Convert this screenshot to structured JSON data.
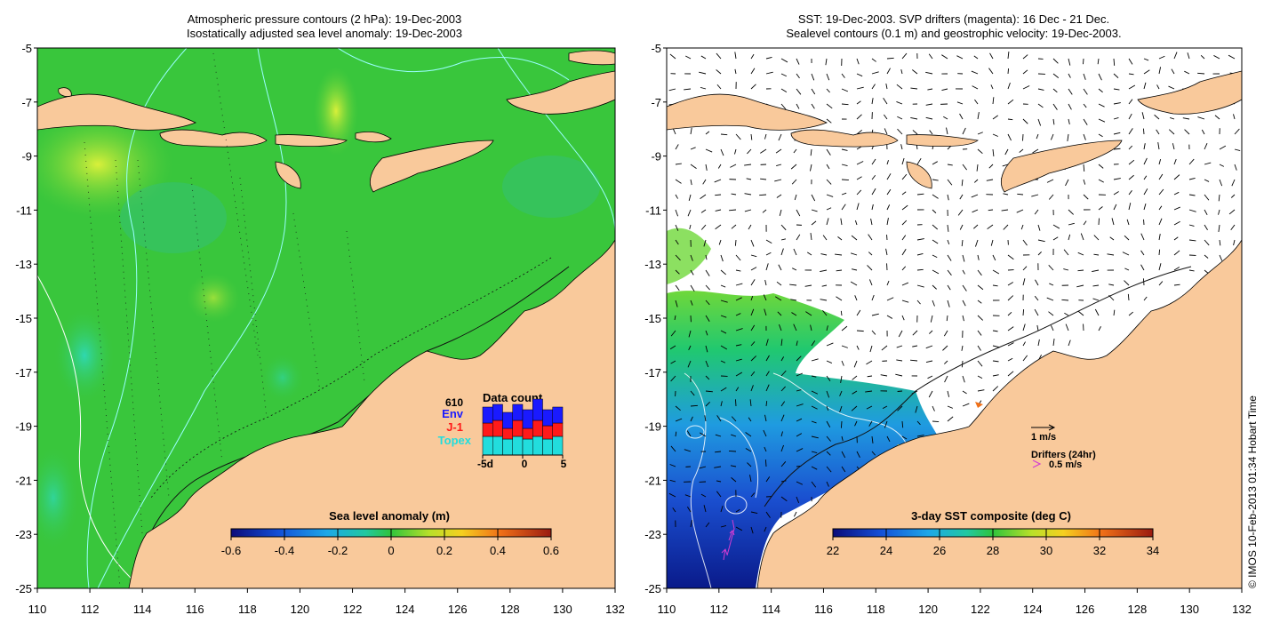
{
  "left_panel": {
    "title_line1": "Atmospheric pressure contours (2 hPa): 19-Dec-2003",
    "title_line2": "Isostatically adjusted sea level anomaly: 19-Dec-2003",
    "colorbar": {
      "label": "Sea level anomaly (m)",
      "ticks": [
        "-0.6",
        "-0.4",
        "-0.2",
        "0",
        "0.2",
        "0.4",
        "0.6"
      ]
    },
    "data_count": {
      "title": "Data count",
      "total": "610",
      "legend": [
        {
          "label": "Env",
          "color": "#1a1aff"
        },
        {
          "label": "J-1",
          "color": "#ff1a1a"
        },
        {
          "label": "Topex",
          "color": "#22dddd"
        }
      ],
      "x_labels": [
        "-5d",
        "0",
        "5"
      ],
      "bars": [
        {
          "topex": 0.35,
          "j1": 0.25,
          "env": 0.3
        },
        {
          "topex": 0.35,
          "j1": 0.3,
          "env": 0.3
        },
        {
          "topex": 0.3,
          "j1": 0.2,
          "env": 0.3
        },
        {
          "topex": 0.35,
          "j1": 0.3,
          "env": 0.3
        },
        {
          "topex": 0.3,
          "j1": 0.2,
          "env": 0.35
        },
        {
          "topex": 0.35,
          "j1": 0.3,
          "env": 0.4
        },
        {
          "topex": 0.3,
          "j1": 0.25,
          "env": 0.3
        },
        {
          "topex": 0.35,
          "j1": 0.25,
          "env": 0.3
        }
      ]
    }
  },
  "right_panel": {
    "title_line1": "SST: 19-Dec-2003. SVP drifters (magenta): 16 Dec - 21 Dec.",
    "title_line2": "Sealevel contours (0.1 m) and geostrophic velocity: 19-Dec-2003.",
    "colorbar": {
      "label": "3-day SST composite (deg C)",
      "ticks": [
        "22",
        "24",
        "26",
        "28",
        "30",
        "32",
        "34"
      ]
    },
    "velocity_key": "1 m/s",
    "drifters_label": "Drifters (24hr)",
    "drifters_key": "0.5 m/s"
  },
  "axes": {
    "y_ticks": [
      "-5",
      "-7",
      "-9",
      "-11",
      "-13",
      "-15",
      "-17",
      "-19",
      "-21",
      "-23",
      "-25"
    ],
    "x_ticks": [
      "110",
      "112",
      "114",
      "116",
      "118",
      "120",
      "122",
      "124",
      "126",
      "128",
      "130",
      "132"
    ],
    "lon_range": [
      110,
      132
    ],
    "lat_range": [
      -25,
      -5
    ]
  },
  "credit": "© IMOS 10-Feb-2013 01:34 Hobart Time",
  "colors": {
    "land": "#f9c99b",
    "ocean_sla": "#39c63c",
    "sst_cold": "#0a1a8a",
    "sst_mid": "#1f9be0",
    "sst_warm": "#20c870"
  }
}
